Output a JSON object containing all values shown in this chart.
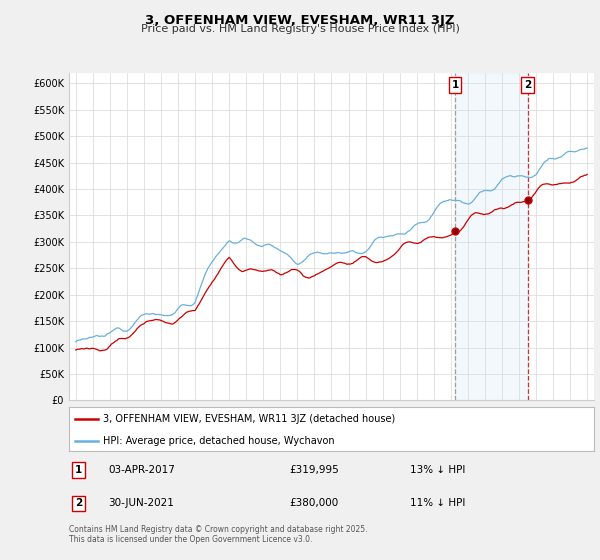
{
  "title": "3, OFFENHAM VIEW, EVESHAM, WR11 3JZ",
  "subtitle": "Price paid vs. HM Land Registry's House Price Index (HPI)",
  "ylim": [
    0,
    620000
  ],
  "yticks": [
    0,
    50000,
    100000,
    150000,
    200000,
    250000,
    300000,
    350000,
    400000,
    450000,
    500000,
    550000,
    600000
  ],
  "ytick_labels": [
    "£0",
    "£50K",
    "£100K",
    "£150K",
    "£200K",
    "£250K",
    "£300K",
    "£350K",
    "£400K",
    "£450K",
    "£500K",
    "£550K",
    "£600K"
  ],
  "hpi_color": "#6ab0de",
  "price_color": "#cc0000",
  "sale1_year": 2017.25,
  "sale2_year": 2021.5,
  "sale1_price": 319995,
  "sale2_price": 380000,
  "legend_line1": "3, OFFENHAM VIEW, EVESHAM, WR11 3JZ (detached house)",
  "legend_line2": "HPI: Average price, detached house, Wychavon",
  "table_row1": [
    "1",
    "03-APR-2017",
    "£319,995",
    "13% ↓ HPI"
  ],
  "table_row2": [
    "2",
    "30-JUN-2021",
    "£380,000",
    "11% ↓ HPI"
  ],
  "footer": "Contains HM Land Registry data © Crown copyright and database right 2025.\nThis data is licensed under the Open Government Licence v3.0.",
  "bg_color": "#f0f0f0",
  "plot_bg": "#ffffff",
  "marker1_vline_color": "#888888",
  "marker2_vline_color": "#cc0000",
  "shade_color": "#cce4f5"
}
